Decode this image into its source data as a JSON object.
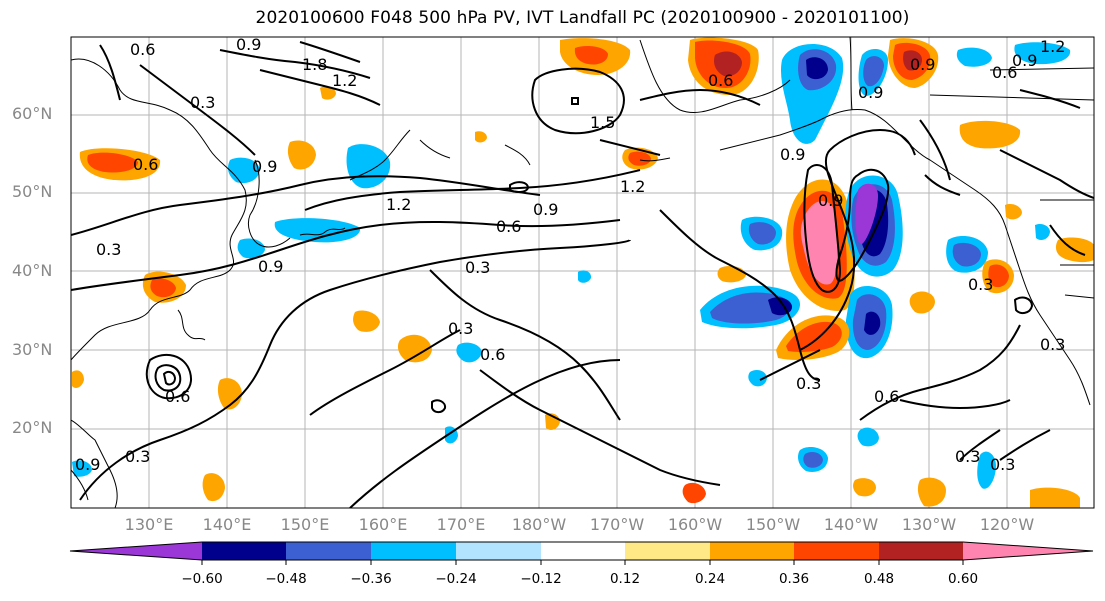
{
  "title": "2020100600 F048 500 hPa PV, IVT Landfall PC (2020100900 - 2020101100)",
  "lat_labels": [
    "60°N",
    "50°N",
    "40°N",
    "30°N",
    "20°N"
  ],
  "lon_labels": [
    "130°E",
    "140°E",
    "150°E",
    "160°E",
    "170°E",
    "180°W",
    "170°W",
    "160°W",
    "150°W",
    "140°W",
    "130°W",
    "120°W"
  ],
  "contour_labels": [
    "0.3",
    "0.6",
    "0.9",
    "1.2",
    "1.5",
    "1.8"
  ],
  "colorbar": {
    "ticks": [
      "−0.60",
      "−0.48",
      "−0.36",
      "−0.24",
      "−0.12",
      "0.12",
      "0.24",
      "0.36",
      "0.48",
      "0.60"
    ],
    "colors": [
      "#9a37d6",
      "#00008c",
      "#3c5fd2",
      "#00bfff",
      "#b2e4ff",
      "#ffffff",
      "#ffe987",
      "#ffa500",
      "#ff4500",
      "#b22222",
      "#ff85b0"
    ]
  }
}
